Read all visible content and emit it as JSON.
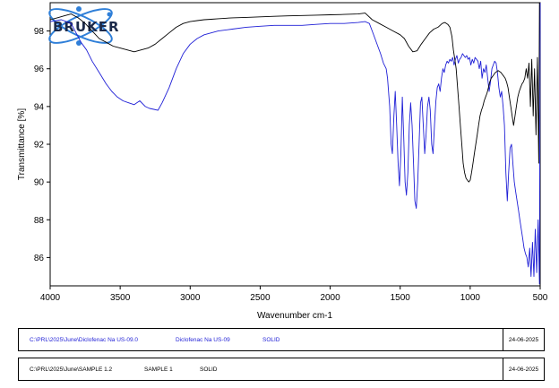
{
  "logo": {
    "text": "BRUKER"
  },
  "chart_data": {
    "type": "line",
    "xlabel": "Wavenumber cm-1",
    "ylabel": "Transmittance [%]",
    "xlim": [
      4000,
      500
    ],
    "ylim": [
      84.5,
      99.5
    ],
    "x_ticks": [
      4000,
      3500,
      3000,
      2500,
      2000,
      1500,
      1000,
      500
    ],
    "y_ticks": [
      86,
      88,
      90,
      92,
      94,
      96,
      98
    ],
    "series": [
      {
        "color": "#1f1fd6",
        "x": [
          4000,
          3920,
          3850,
          3780,
          3740,
          3700,
          3650,
          3600,
          3560,
          3520,
          3480,
          3440,
          3400,
          3360,
          3320,
          3290,
          3260,
          3230,
          3200,
          3150,
          3100,
          3050,
          3000,
          2950,
          2900,
          2800,
          2700,
          2600,
          2500,
          2400,
          2300,
          2200,
          2100,
          2000,
          1900,
          1800,
          1750,
          1720,
          1700,
          1680,
          1660,
          1640,
          1620,
          1600,
          1590,
          1575,
          1565,
          1556,
          1545,
          1535,
          1525,
          1515,
          1505,
          1495,
          1485,
          1475,
          1465,
          1455,
          1445,
          1435,
          1425,
          1415,
          1405,
          1395,
          1385,
          1375,
          1365,
          1355,
          1345,
          1335,
          1325,
          1315,
          1305,
          1295,
          1285,
          1275,
          1265,
          1255,
          1245,
          1235,
          1225,
          1215,
          1205,
          1195,
          1185,
          1175,
          1165,
          1155,
          1145,
          1135,
          1125,
          1115,
          1105,
          1095,
          1085,
          1075,
          1065,
          1055,
          1045,
          1035,
          1025,
          1015,
          1005,
          995,
          985,
          975,
          965,
          955,
          945,
          935,
          925,
          915,
          905,
          895,
          885,
          875,
          865,
          855,
          845,
          835,
          825,
          815,
          805,
          795,
          785,
          775,
          765,
          755,
          745,
          735,
          725,
          715,
          705,
          695,
          685,
          675,
          665,
          655,
          645,
          635,
          625,
          615,
          605,
          595,
          585,
          575,
          565,
          555,
          545,
          535,
          525,
          515,
          505,
          500
        ],
        "y": [
          98.5,
          98.6,
          98.4,
          97.4,
          97.0,
          96.4,
          95.8,
          95.2,
          94.8,
          94.5,
          94.3,
          94.2,
          94.1,
          94.3,
          94.0,
          93.9,
          93.85,
          93.8,
          94.2,
          95.0,
          96.0,
          96.8,
          97.3,
          97.6,
          97.8,
          98.0,
          98.1,
          98.2,
          98.25,
          98.3,
          98.3,
          98.3,
          98.35,
          98.4,
          98.4,
          98.45,
          98.5,
          98.4,
          98.0,
          97.6,
          97.2,
          96.8,
          96.3,
          96.0,
          95.5,
          94.0,
          92.0,
          91.5,
          93.5,
          94.8,
          93.0,
          91.0,
          89.8,
          91.5,
          94.5,
          92.5,
          90.0,
          89.3,
          90.5,
          93.0,
          94.2,
          93.0,
          91.0,
          89.0,
          88.6,
          90.0,
          92.0,
          94.2,
          94.5,
          93.0,
          91.5,
          92.5,
          94.0,
          94.5,
          93.8,
          92.0,
          91.5,
          93.0,
          94.3,
          95.0,
          95.2,
          94.8,
          95.5,
          96.0,
          95.8,
          96.2,
          96.4,
          96.3,
          96.5,
          96.4,
          96.6,
          96.2,
          96.5,
          96.7,
          96.3,
          96.5,
          96.6,
          96.8,
          96.7,
          96.6,
          96.7,
          96.5,
          96.6,
          96.2,
          96.5,
          96.3,
          96.6,
          96.5,
          96.4,
          96.0,
          96.4,
          95.5,
          96.0,
          95.8,
          96.2,
          95.5,
          94.8,
          95.3,
          96.0,
          96.2,
          96.4,
          96.3,
          95.8,
          95.0,
          94.5,
          94.8,
          94.0,
          93.0,
          90.5,
          89.0,
          90.5,
          91.8,
          92.0,
          91.0,
          90.0,
          89.5,
          89.0,
          88.5,
          88.0,
          87.5,
          87.0,
          86.5,
          86.2,
          86.0,
          85.5,
          86.5,
          85.0,
          86.8,
          85.0,
          87.5,
          85.2,
          88.0,
          84.6,
          99.5
        ],
        "name": ""
      },
      {
        "color": "#000000",
        "x": [
          4000,
          3950,
          3900,
          3850,
          3800,
          3750,
          3700,
          3650,
          3600,
          3550,
          3500,
          3450,
          3400,
          3350,
          3300,
          3250,
          3200,
          3150,
          3100,
          3050,
          3000,
          2950,
          2900,
          2850,
          2800,
          2700,
          2600,
          2500,
          2400,
          2300,
          2200,
          2100,
          2000,
          1900,
          1800,
          1750,
          1700,
          1650,
          1600,
          1550,
          1500,
          1470,
          1440,
          1410,
          1380,
          1350,
          1320,
          1290,
          1260,
          1230,
          1200,
          1180,
          1160,
          1145,
          1130,
          1120,
          1110,
          1100,
          1090,
          1080,
          1070,
          1060,
          1050,
          1040,
          1030,
          1020,
          1010,
          1000,
          990,
          980,
          970,
          960,
          950,
          940,
          930,
          920,
          910,
          900,
          890,
          880,
          870,
          860,
          850,
          840,
          830,
          820,
          810,
          800,
          790,
          780,
          770,
          760,
          750,
          740,
          730,
          720,
          710,
          700,
          690,
          680,
          670,
          660,
          650,
          640,
          630,
          620,
          610,
          600,
          590,
          580,
          570,
          560,
          550,
          540,
          530,
          520,
          510,
          505,
          500
        ],
        "y": [
          98.6,
          98.7,
          98.8,
          98.9,
          98.7,
          98.4,
          98.0,
          97.6,
          97.4,
          97.2,
          97.1,
          97.0,
          96.9,
          97.0,
          97.1,
          97.3,
          97.6,
          97.9,
          98.2,
          98.4,
          98.5,
          98.55,
          98.6,
          98.62,
          98.65,
          98.7,
          98.72,
          98.75,
          98.78,
          98.8,
          98.82,
          98.84,
          98.86,
          98.88,
          98.9,
          98.95,
          98.6,
          98.4,
          98.2,
          98.0,
          97.8,
          97.6,
          97.2,
          96.9,
          96.95,
          97.3,
          97.6,
          97.9,
          98.1,
          98.2,
          98.4,
          98.45,
          98.35,
          98.2,
          97.7,
          97.0,
          96.5,
          96.0,
          95.0,
          94.0,
          93.0,
          92.0,
          91.0,
          90.5,
          90.2,
          90.1,
          90.0,
          90.1,
          90.5,
          91.0,
          91.5,
          92.0,
          92.5,
          93.0,
          93.5,
          93.8,
          94.0,
          94.3,
          94.5,
          94.7,
          95.0,
          95.3,
          95.5,
          95.6,
          95.7,
          95.8,
          95.85,
          95.9,
          95.85,
          95.8,
          95.7,
          95.6,
          95.5,
          95.3,
          95.0,
          94.5,
          94.0,
          93.5,
          93.0,
          93.5,
          94.0,
          94.5,
          94.8,
          95.0,
          95.2,
          95.3,
          95.5,
          96.0,
          95.5,
          96.3,
          94.0,
          96.5,
          93.5,
          96.0,
          92.5,
          96.6,
          91.0,
          99.5,
          99.5
        ],
        "name": ""
      }
    ]
  },
  "footer": {
    "rows": [
      {
        "path": "C:\\PRL\\2025\\June\\Diclofenac Na US-09.0",
        "sample": "Diclofenac Na US-09",
        "state": "SOLID",
        "date": "24-06-2025",
        "color": "blue"
      },
      {
        "path": "C:\\PRL\\2025\\June\\SAMPLE 1.2",
        "sample": "SAMPLE 1",
        "state": "SOLID",
        "date": "24-06-2025",
        "color": "black"
      }
    ]
  }
}
